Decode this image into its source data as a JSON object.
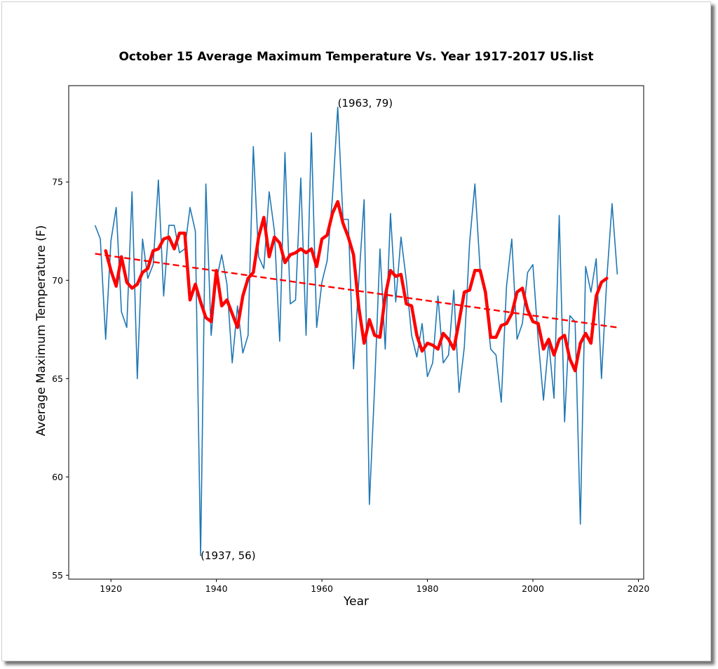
{
  "chart_data": {
    "type": "line",
    "title": "October 15 Average Maximum Temperature Vs. Year 1917-2017 US.list",
    "xlabel": "Year",
    "ylabel": "Average Maximum Temperature (F)",
    "xlim": [
      1912,
      2021
    ],
    "ylim": [
      54.8,
      79.9
    ],
    "xticks": [
      1920,
      1940,
      1960,
      1980,
      2000,
      2020
    ],
    "yticks": [
      55,
      60,
      65,
      70,
      75
    ],
    "grid": false,
    "colors": {
      "series": "#1f77b4",
      "smooth": "#ff0000",
      "trend": "#ff0000"
    },
    "series": [
      {
        "style": "thin-blue-line",
        "x": [
          1917,
          1918,
          1919,
          1920,
          1921,
          1922,
          1923,
          1924,
          1925,
          1926,
          1927,
          1928,
          1929,
          1930,
          1931,
          1932,
          1933,
          1934,
          1935,
          1936,
          1937,
          1938,
          1939,
          1940,
          1941,
          1942,
          1943,
          1944,
          1945,
          1946,
          1947,
          1948,
          1949,
          1950,
          1951,
          1952,
          1953,
          1954,
          1955,
          1956,
          1957,
          1958,
          1959,
          1960,
          1961,
          1962,
          1963,
          1964,
          1965,
          1966,
          1967,
          1968,
          1969,
          1970,
          1971,
          1972,
          1973,
          1974,
          1975,
          1976,
          1977,
          1978,
          1979,
          1980,
          1981,
          1982,
          1983,
          1984,
          1985,
          1986,
          1987,
          1988,
          1989,
          1990,
          1991,
          1992,
          1993,
          1994,
          1995,
          1996,
          1997,
          1998,
          1999,
          2000,
          2001,
          2002,
          2003,
          2004,
          2005,
          2006,
          2007,
          2008,
          2009,
          2010,
          2011,
          2012,
          2013,
          2014,
          2015,
          2016
        ],
        "values": [
          72.8,
          72.1,
          67.0,
          72.0,
          73.7,
          68.4,
          67.6,
          74.5,
          65.0,
          72.1,
          70.1,
          70.8,
          75.1,
          69.2,
          72.8,
          72.8,
          71.4,
          71.6,
          73.7,
          72.5,
          56.0,
          74.9,
          67.2,
          70.0,
          71.3,
          69.8,
          65.8,
          68.7,
          66.3,
          67.2,
          76.8,
          71.2,
          70.6,
          74.5,
          72.5,
          66.9,
          76.5,
          68.8,
          69.0,
          75.2,
          67.2,
          77.5,
          67.6,
          69.9,
          71.0,
          74.2,
          78.8,
          73.1,
          73.1,
          65.5,
          70.0,
          74.1,
          58.6,
          64.6,
          71.6,
          66.5,
          73.4,
          68.9,
          72.2,
          70.0,
          67.2,
          66.1,
          67.8,
          65.1,
          65.8,
          69.2,
          65.8,
          66.2,
          69.5,
          64.3,
          66.6,
          71.9,
          74.9,
          70.5,
          69.2,
          66.5,
          66.2,
          63.8,
          69.7,
          72.1,
          67.0,
          67.8,
          70.4,
          70.8,
          67.0,
          63.9,
          66.9,
          64.0,
          73.3,
          62.8,
          68.2,
          67.9,
          57.6,
          70.7,
          69.4,
          71.1,
          65.0,
          70.0,
          73.9,
          70.3
        ]
      },
      {
        "style": "thick-red-smoothed",
        "x": [
          1919,
          1920,
          1921,
          1922,
          1923,
          1924,
          1925,
          1926,
          1927,
          1928,
          1929,
          1930,
          1931,
          1932,
          1933,
          1934,
          1935,
          1936,
          1937,
          1938,
          1939,
          1940,
          1941,
          1942,
          1943,
          1944,
          1945,
          1946,
          1947,
          1948,
          1949,
          1950,
          1951,
          1952,
          1953,
          1954,
          1955,
          1956,
          1957,
          1958,
          1959,
          1960,
          1961,
          1962,
          1963,
          1964,
          1965,
          1966,
          1967,
          1968,
          1969,
          1970,
          1971,
          1972,
          1973,
          1974,
          1975,
          1976,
          1977,
          1978,
          1979,
          1980,
          1981,
          1982,
          1983,
          1984,
          1985,
          1986,
          1987,
          1988,
          1989,
          1990,
          1991,
          1992,
          1993,
          1994,
          1995,
          1996,
          1997,
          1998,
          1999,
          2000,
          2001,
          2002,
          2003,
          2004,
          2005,
          2006,
          2007,
          2008,
          2009,
          2010,
          2011,
          2012,
          2013,
          2014
        ],
        "values": [
          71.5,
          70.5,
          69.7,
          71.2,
          69.9,
          69.6,
          69.8,
          70.4,
          70.6,
          71.5,
          71.6,
          72.1,
          72.2,
          71.6,
          72.4,
          72.4,
          69.0,
          69.8,
          68.9,
          68.1,
          67.9,
          70.5,
          68.7,
          69.0,
          68.3,
          67.6,
          69.2,
          70.1,
          70.4,
          72.2,
          73.2,
          71.2,
          72.2,
          71.9,
          70.9,
          71.3,
          71.4,
          71.6,
          71.4,
          71.6,
          70.7,
          72.1,
          72.3,
          73.4,
          74.0,
          72.9,
          72.2,
          71.3,
          68.6,
          66.8,
          68.0,
          67.2,
          67.1,
          69.2,
          70.5,
          70.2,
          70.3,
          68.8,
          68.7,
          67.2,
          66.4,
          66.8,
          66.7,
          66.5,
          67.3,
          67.0,
          66.5,
          67.9,
          69.4,
          69.5,
          70.5,
          70.5,
          69.4,
          67.1,
          67.1,
          67.7,
          67.8,
          68.3,
          69.4,
          69.6,
          68.5,
          67.9,
          67.8,
          66.5,
          67.0,
          66.2,
          67.0,
          67.2,
          66.0,
          65.4,
          66.8,
          67.3,
          66.8,
          69.2,
          69.9,
          70.1
        ]
      },
      {
        "style": "dashed-red-trend",
        "x": [
          1917,
          2016
        ],
        "values": [
          71.35,
          67.6
        ]
      }
    ],
    "annotations": [
      {
        "text": "(1963, 79)",
        "x": 1963,
        "y": 79
      },
      {
        "text": "(1937, 56)",
        "x": 1937,
        "y": 56
      }
    ]
  }
}
